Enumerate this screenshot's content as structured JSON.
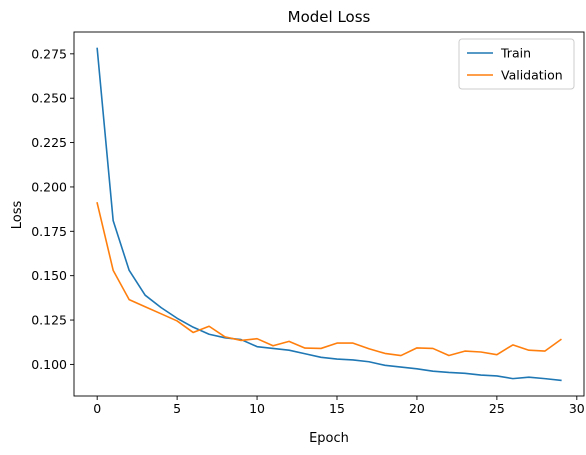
{
  "chart_data": {
    "type": "line",
    "title": "Model Loss",
    "xlabel": "Epoch",
    "ylabel": "Loss",
    "xlim": [
      -1.45,
      30.45
    ],
    "ylim": [
      0.0822,
      0.2873
    ],
    "xticks": [
      0,
      5,
      10,
      15,
      20,
      25,
      30
    ],
    "yticks": [
      0.1,
      0.125,
      0.15,
      0.175,
      0.2,
      0.225,
      0.25,
      0.275
    ],
    "ytick_labels": [
      "0.100",
      "0.125",
      "0.150",
      "0.175",
      "0.200",
      "0.225",
      "0.250",
      "0.275"
    ],
    "grid": false,
    "legend_position": "top-right",
    "x": [
      0,
      1,
      2,
      3,
      4,
      5,
      6,
      7,
      8,
      9,
      10,
      11,
      12,
      13,
      14,
      15,
      16,
      17,
      18,
      19,
      20,
      21,
      22,
      23,
      24,
      25,
      26,
      27,
      28,
      29
    ],
    "series": [
      {
        "name": "Train",
        "color": "#1f77b4",
        "values": [
          0.278,
          0.181,
          0.153,
          0.139,
          0.132,
          0.126,
          0.121,
          0.117,
          0.115,
          0.114,
          0.11,
          0.109,
          0.108,
          0.106,
          0.104,
          0.103,
          0.1025,
          0.1015,
          0.0995,
          0.0985,
          0.0975,
          0.0962,
          0.0955,
          0.095,
          0.094,
          0.0935,
          0.092,
          0.0928,
          0.092,
          0.091
        ]
      },
      {
        "name": "Validation",
        "color": "#ff7f0e",
        "values": [
          0.191,
          0.153,
          0.1365,
          0.1325,
          0.1285,
          0.1245,
          0.118,
          0.1215,
          0.1155,
          0.1135,
          0.1145,
          0.1105,
          0.113,
          0.1092,
          0.109,
          0.112,
          0.112,
          0.1088,
          0.1062,
          0.105,
          0.1093,
          0.109,
          0.105,
          0.1075,
          0.107,
          0.1055,
          0.111,
          0.108,
          0.1075,
          0.114
        ]
      }
    ]
  }
}
